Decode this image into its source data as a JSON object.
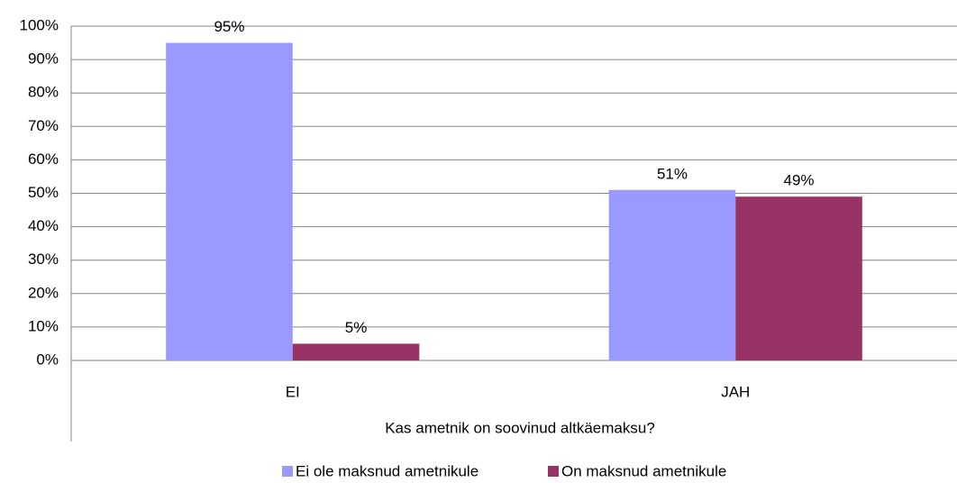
{
  "chart_data": {
    "type": "bar",
    "x_label": "Kas ametnik on soovinud altkäemaksu?",
    "categories": [
      "EI",
      "JAH"
    ],
    "series": [
      {
        "name": "Ei ole maksnud ametnikule",
        "color": "#9999ff",
        "values": [
          95,
          51
        ],
        "value_labels": [
          "95%",
          "51%"
        ]
      },
      {
        "name": "On maksnud ametnikule",
        "color": "#993366",
        "values": [
          5,
          49
        ],
        "value_labels": [
          "5%",
          "49%"
        ]
      }
    ],
    "ylim": [
      0,
      100
    ],
    "yticks": [
      {
        "value": 0,
        "label": "0%"
      },
      {
        "value": 10,
        "label": "10%"
      },
      {
        "value": 20,
        "label": "20%"
      },
      {
        "value": 30,
        "label": "30%"
      },
      {
        "value": 40,
        "label": "40%"
      },
      {
        "value": 50,
        "label": "50%"
      },
      {
        "value": 60,
        "label": "60%"
      },
      {
        "value": 70,
        "label": "70%"
      },
      {
        "value": 80,
        "label": "80%"
      },
      {
        "value": 90,
        "label": "90%"
      },
      {
        "value": 100,
        "label": "100%"
      }
    ],
    "grid": true,
    "legend": "bottom"
  }
}
